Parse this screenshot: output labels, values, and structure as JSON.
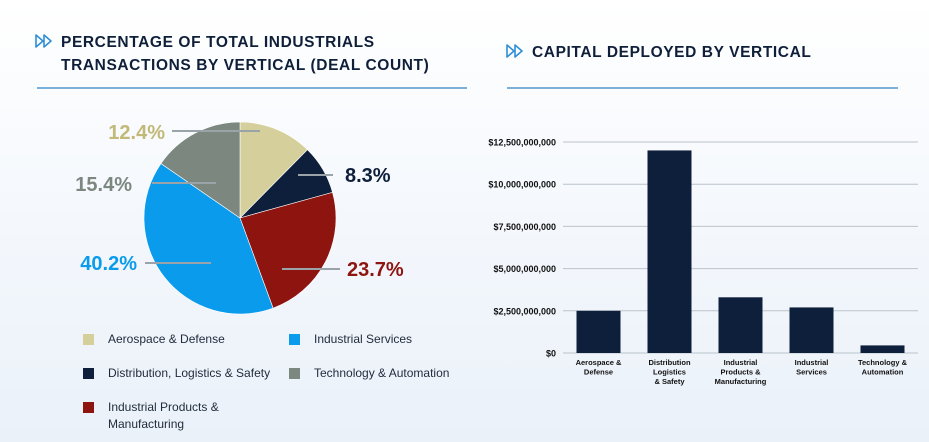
{
  "left_panel": {
    "title_line1": "PERCENTAGE OF TOTAL INDUSTRIALS",
    "title_line2": "TRANSACTIONS BY VERTICAL (DEAL COUNT)",
    "icon": "double-chevron-right-icon"
  },
  "right_panel": {
    "title": "CAPITAL DEPLOYED BY VERTICAL",
    "icon": "double-chevron-right-icon"
  },
  "colors": {
    "accent": "#2f8fd6",
    "aerospace": "#d5cf9c",
    "distribution": "#0e1f3b",
    "industrial_products": "#8e1410",
    "industrial_services": "#0a9bec",
    "technology": "#7b877f"
  },
  "legend": [
    {
      "label": "Aerospace & Defense",
      "color": "#d5cf9c"
    },
    {
      "label": "Industrial Services",
      "color": "#0a9bec"
    },
    {
      "label": "Distribution, Logistics & Safety",
      "color": "#0e1f3b"
    },
    {
      "label": "Technology & Automation",
      "color": "#7b877f"
    },
    {
      "label": "Industrial Products &",
      "label2": "Manufacturing",
      "color": "#8e1410"
    }
  ],
  "chart_data": [
    {
      "type": "pie",
      "title": "PERCENTAGE OF TOTAL INDUSTRIALS TRANSACTIONS BY VERTICAL (DEAL COUNT)",
      "slices": [
        {
          "name": "Aerospace & Defense",
          "value": 12.4,
          "label": "12.4%",
          "color": "#d5cf9c",
          "label_color": "#c2b978"
        },
        {
          "name": "Distribution, Logistics & Safety",
          "value": 8.3,
          "label": "8.3%",
          "color": "#0e1f3b",
          "label_color": "#0e1f3b"
        },
        {
          "name": "Industrial Products & Manufacturing",
          "value": 23.7,
          "label": "23.7%",
          "color": "#8e1410",
          "label_color": "#8e1410"
        },
        {
          "name": "Industrial Services",
          "value": 40.2,
          "label": "40.2%",
          "color": "#0a9bec",
          "label_color": "#0a9bec"
        },
        {
          "name": "Technology & Automation",
          "value": 15.4,
          "label": "15.4%",
          "color": "#7b877f",
          "label_color": "#7b877f"
        }
      ],
      "start_angle": "12 o'clock",
      "direction": "clockwise"
    },
    {
      "type": "bar",
      "title": "CAPITAL DEPLOYED BY VERTICAL",
      "categories": [
        [
          "Aerospace &",
          "Defense"
        ],
        [
          "Distribution",
          "Logistics",
          "& Safety"
        ],
        [
          "Industrial",
          "Products &",
          "Manufacturing"
        ],
        [
          "Industrial",
          "Services"
        ],
        [
          "Technology &",
          "Automation"
        ]
      ],
      "values": [
        2500000000,
        12000000000,
        3300000000,
        2700000000,
        450000000
      ],
      "ylim": [
        0,
        12500000000
      ],
      "yticks": [
        0,
        2500000000,
        5000000000,
        7500000000,
        10000000000,
        12500000000
      ],
      "ytick_labels": [
        "$0",
        "$2,500,000,000",
        "$5,000,000,000",
        "$7,500,000,000",
        "$10,000,000,000",
        "$12,500,000,000"
      ],
      "bar_color": "#0e1f3b",
      "grid": true,
      "xlabel": "",
      "ylabel": ""
    }
  ]
}
